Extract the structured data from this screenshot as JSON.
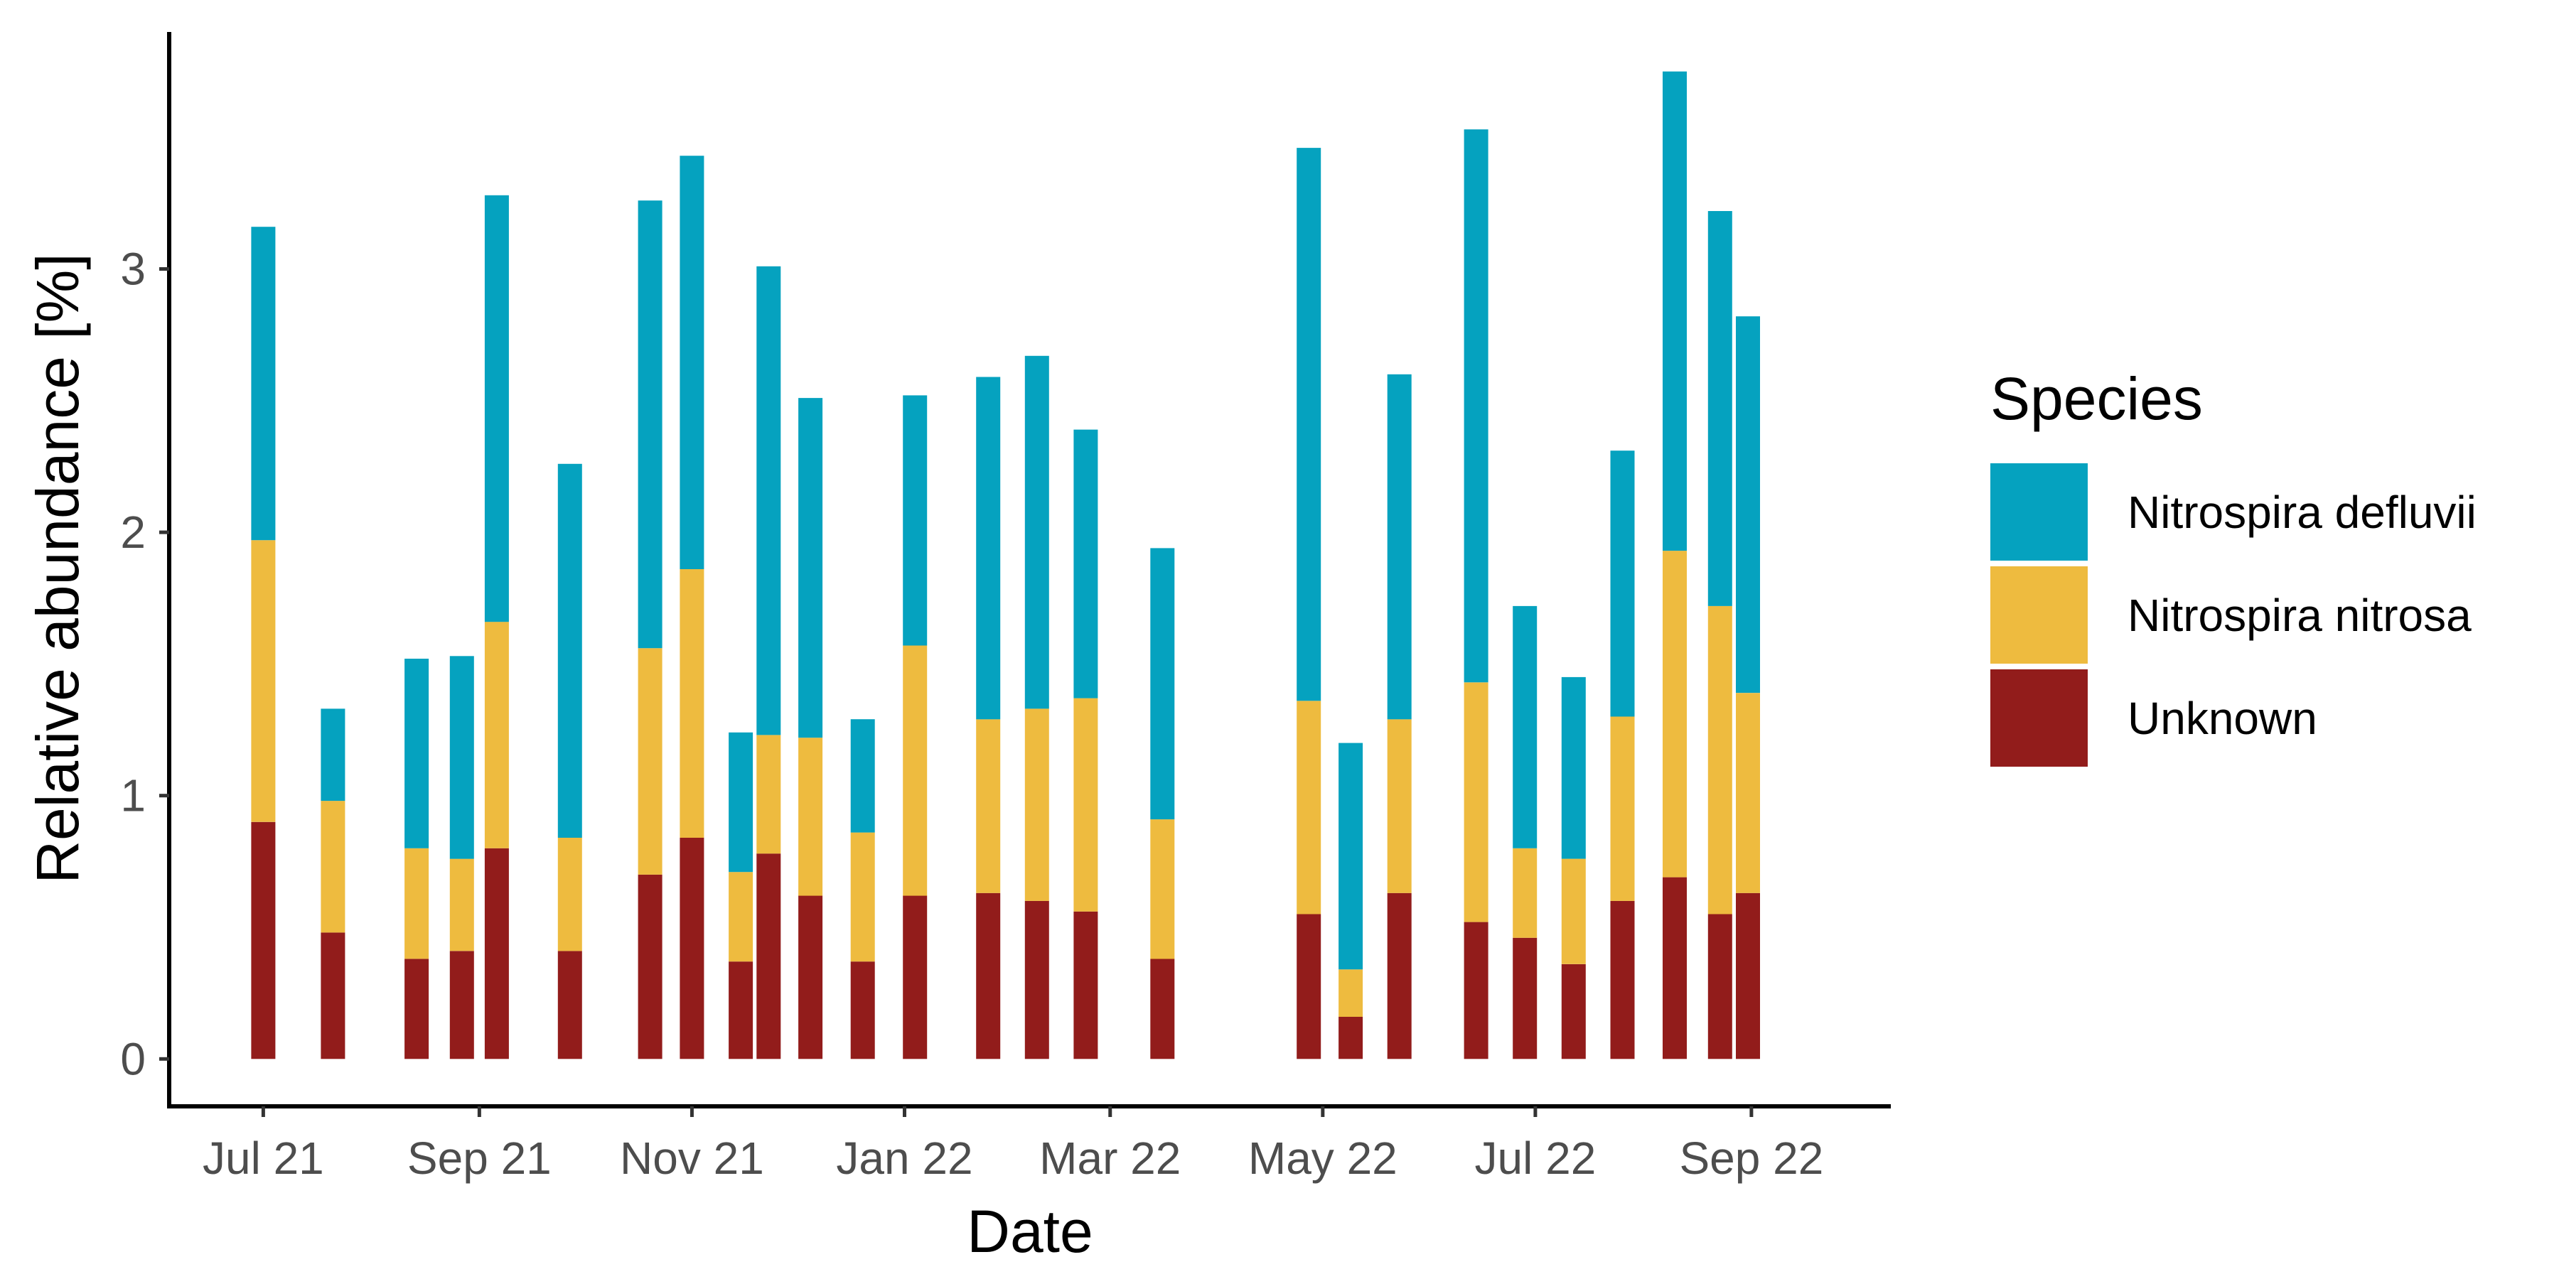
{
  "chart_data": {
    "type": "bar",
    "stacked": true,
    "xlabel": "Date",
    "ylabel": "Relative abundance [%]",
    "x_axis_type": "date",
    "x_ticks": [
      {
        "date": "2021-07-01",
        "label": "Jul 21"
      },
      {
        "date": "2021-09-01",
        "label": "Sep 21"
      },
      {
        "date": "2021-11-01",
        "label": "Nov 21"
      },
      {
        "date": "2022-01-01",
        "label": "Jan 22"
      },
      {
        "date": "2022-03-01",
        "label": "Mar 22"
      },
      {
        "date": "2022-05-01",
        "label": "May 22"
      },
      {
        "date": "2022-07-01",
        "label": "Jul 22"
      },
      {
        "date": "2022-09-01",
        "label": "Sep 22"
      }
    ],
    "xlim": [
      "2021-06-04",
      "2022-10-11"
    ],
    "y_ticks": [
      0,
      1,
      2,
      3
    ],
    "ylim": [
      -0.18,
      3.9
    ],
    "grid": false,
    "legend": {
      "title": "Species",
      "position": "right"
    },
    "colors": {
      "Nitrospira defluvii": "#05A2BF",
      "Nitrospira nitrosa": "#EEBB3F",
      "Unknown": "#921C1B"
    },
    "dates": [
      "2021-07-01",
      "2021-07-21",
      "2021-08-14",
      "2021-08-27",
      "2021-09-06",
      "2021-09-27",
      "2021-10-20",
      "2021-11-01",
      "2021-11-15",
      "2021-11-23",
      "2021-12-05",
      "2021-12-20",
      "2022-01-04",
      "2022-01-25",
      "2022-02-08",
      "2022-02-22",
      "2022-03-16",
      "2022-04-27",
      "2022-05-09",
      "2022-05-23",
      "2022-06-14",
      "2022-06-28",
      "2022-07-12",
      "2022-07-26",
      "2022-08-10",
      "2022-08-23",
      "2022-08-31"
    ],
    "series": [
      {
        "name": "Unknown",
        "values": [
          0.9,
          0.48,
          0.38,
          0.41,
          0.8,
          0.41,
          0.7,
          0.84,
          0.37,
          0.78,
          0.62,
          0.37,
          0.62,
          0.63,
          0.6,
          0.56,
          0.38,
          0.55,
          0.16,
          0.63,
          0.52,
          0.46,
          0.36,
          0.6,
          0.69,
          0.55,
          0.63
        ]
      },
      {
        "name": "Nitrospira nitrosa",
        "values": [
          1.07,
          0.5,
          0.42,
          0.35,
          0.86,
          0.43,
          0.86,
          1.02,
          0.34,
          0.45,
          0.6,
          0.49,
          0.95,
          0.66,
          0.73,
          0.81,
          0.53,
          0.81,
          0.18,
          0.66,
          0.91,
          0.34,
          0.4,
          0.7,
          1.24,
          1.17,
          0.76
        ]
      },
      {
        "name": "Nitrospira defluvii",
        "values": [
          1.19,
          0.35,
          0.72,
          0.77,
          1.62,
          1.42,
          1.7,
          1.57,
          0.53,
          1.78,
          1.29,
          0.43,
          0.95,
          1.3,
          1.34,
          1.02,
          1.03,
          2.1,
          0.86,
          1.31,
          2.1,
          0.92,
          0.69,
          1.01,
          1.82,
          1.5,
          1.43
        ]
      }
    ]
  }
}
